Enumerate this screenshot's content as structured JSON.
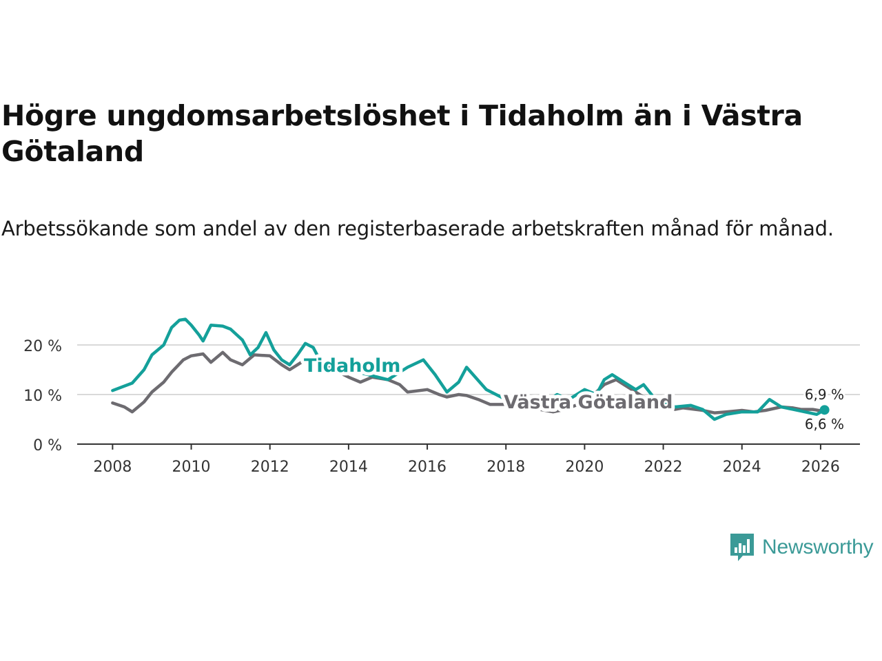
{
  "title": "Högre ungdomsarbetslöshet i Tidaholm än i Västra Götaland",
  "subtitle": "Arbetssökande som andel av den registerbaserade arbetskraften månad för månad.",
  "logo": {
    "text": "Newsworthy",
    "icon": "bar-chart-speech-bubble-icon"
  },
  "colors": {
    "tidaholm": "#14a09a",
    "vastra_gotaland": "#6d6b70",
    "grid": "#d9d9d9",
    "axis": "#333333",
    "logo": "#3b9a97"
  },
  "chart_data": {
    "type": "line",
    "title": "Högre ungdomsarbetslöshet i Tidaholm än i Västra Götaland",
    "subtitle": "Arbetssökande som andel av den registerbaserade arbetskraften månad för månad.",
    "xlabel": "",
    "ylabel": "",
    "xlim": [
      2007.1,
      2027.0
    ],
    "ylim": [
      0,
      22
    ],
    "x_ticks": [
      2008,
      2010,
      2012,
      2014,
      2016,
      2018,
      2020,
      2022,
      2024,
      2026
    ],
    "x_tick_labels": [
      "2008",
      "2010",
      "2012",
      "2014",
      "2016",
      "2018",
      "2020",
      "2022",
      "2024",
      "2026"
    ],
    "y_ticks": [
      0,
      10,
      20
    ],
    "y_tick_labels": [
      "0 %",
      "10 %",
      "20 %"
    ],
    "grid": true,
    "series": [
      {
        "name": "Tidaholm",
        "label": "Tidaholm",
        "end_label": "6,9 %",
        "color": "#14a09a",
        "x": [
          2008.0,
          2008.5,
          2008.8,
          2009.0,
          2009.3,
          2009.5,
          2009.7,
          2009.85,
          2010.0,
          2010.2,
          2010.3,
          2010.5,
          2010.8,
          2011.0,
          2011.3,
          2011.5,
          2011.7,
          2011.9,
          2012.1,
          2012.3,
          2012.5,
          2012.7,
          2012.9,
          2013.1,
          2013.3,
          2013.6,
          2014.0,
          2014.5,
          2015.0,
          2015.5,
          2015.9,
          2016.2,
          2016.5,
          2016.8,
          2017.0,
          2017.5,
          2018.0,
          2018.5,
          2019.0,
          2019.3,
          2019.6,
          2020.0,
          2020.3,
          2020.5,
          2020.7,
          2021.0,
          2021.3,
          2021.5,
          2021.8,
          2022.0,
          2022.3,
          2022.7,
          2023.0,
          2023.3,
          2023.6,
          2024.0,
          2024.4,
          2024.7,
          2025.0,
          2025.3,
          2025.6,
          2025.9,
          2026.1
        ],
        "y": [
          10.8,
          12.3,
          15.0,
          18.0,
          20.0,
          23.5,
          25.0,
          25.2,
          24.0,
          22.0,
          20.8,
          24.0,
          23.8,
          23.2,
          21.0,
          18.0,
          19.5,
          22.5,
          19.0,
          17.0,
          16.0,
          18.0,
          20.3,
          19.5,
          16.5,
          14.5,
          15.0,
          14.0,
          13.0,
          15.5,
          17.0,
          14.0,
          10.5,
          12.5,
          15.5,
          11.0,
          9.0,
          8.5,
          8.5,
          10.0,
          9.0,
          11.0,
          10.0,
          13.0,
          14.0,
          12.5,
          11.0,
          12.0,
          9.0,
          8.5,
          7.5,
          7.8,
          7.0,
          5.0,
          6.0,
          6.5,
          6.5,
          9.0,
          7.5,
          7.0,
          6.5,
          6.0,
          6.9
        ]
      },
      {
        "name": "Västra Götaland",
        "label": "Västra Götaland",
        "end_label": "6,6 %",
        "color": "#6d6b70",
        "x": [
          2008.0,
          2008.3,
          2008.5,
          2008.8,
          2009.0,
          2009.3,
          2009.5,
          2009.8,
          2010.0,
          2010.3,
          2010.5,
          2010.8,
          2011.0,
          2011.3,
          2011.6,
          2012.0,
          2012.3,
          2012.5,
          2012.8,
          2013.0,
          2013.5,
          2014.0,
          2014.3,
          2014.6,
          2015.0,
          2015.3,
          2015.5,
          2016.0,
          2016.3,
          2016.5,
          2016.8,
          2017.0,
          2017.3,
          2017.6,
          2018.0,
          2018.5,
          2019.0,
          2019.2,
          2019.5,
          2020.0,
          2020.3,
          2020.5,
          2020.8,
          2021.0,
          2021.3,
          2021.5,
          2022.0,
          2022.3,
          2022.5,
          2023.0,
          2023.3,
          2023.6,
          2024.0,
          2024.3,
          2024.6,
          2025.0,
          2025.3,
          2025.5,
          2025.8,
          2026.1
        ],
        "y": [
          8.3,
          7.5,
          6.5,
          8.5,
          10.5,
          12.5,
          14.5,
          17.0,
          17.8,
          18.2,
          16.5,
          18.5,
          17.0,
          16.0,
          18.0,
          17.8,
          16.0,
          15.0,
          16.5,
          17.5,
          15.5,
          13.5,
          12.5,
          13.5,
          13.0,
          12.0,
          10.5,
          11.0,
          10.0,
          9.5,
          10.0,
          9.8,
          9.0,
          8.0,
          8.0,
          7.5,
          6.8,
          6.5,
          7.0,
          8.5,
          10.5,
          12.0,
          13.0,
          12.0,
          10.5,
          9.5,
          8.0,
          7.0,
          7.3,
          6.8,
          6.3,
          6.5,
          6.8,
          6.5,
          6.8,
          7.5,
          7.3,
          7.0,
          7.0,
          6.6
        ]
      }
    ]
  }
}
